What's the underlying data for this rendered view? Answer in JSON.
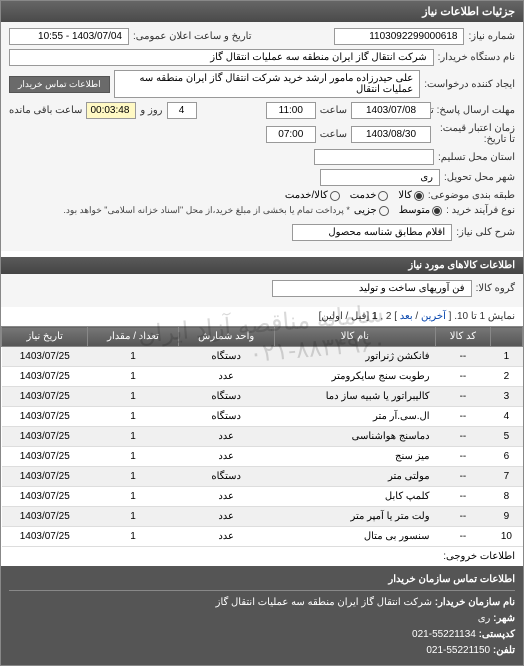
{
  "panel": {
    "title": "جزئیات اطلاعات نیاز"
  },
  "fields": {
    "request_no_label": "شماره نیاز:",
    "request_no": "1103092299000618",
    "announce_label": "تاریخ و ساعت اعلان عمومی:",
    "announce_value": "1403/07/04 - 10:55",
    "buyer_label": "نام دستگاه خریدار:",
    "buyer_value": "شرکت انتقال گاز ایران منطقه سه عملیات انتقال گاز",
    "requester_label": "ایجاد کننده درخواست:",
    "requester_value": "علی حیدرزاده مامور ارشد خرید شرکت انتقال گاز ایران منطقه سه عملیات انتقال",
    "buyer_contact_btn": "اطلاعات تماس خریدار",
    "deadline_send_label": "مهلت ارسال پاسخ: تا",
    "deadline_send_date": "1403/07/08",
    "time_label": "ساعت",
    "deadline_send_time": "11:00",
    "day_label": "روز و",
    "days_remaining": "4",
    "hours_remaining": "00:03:48",
    "remaining_label": "ساعت باقی مانده",
    "validity_label": "زمان اعتبار\nقیمت: تا تاریخ:",
    "validity_date": "1403/08/30",
    "validity_time": "07:00",
    "tender_city_label": "استان محل تسلیم:",
    "delivery_city_label": "شهر محل تحویل:",
    "delivery_city_value": "ری",
    "category_label": "طبقه بندی موضوعی:",
    "cat_goods": "کالا",
    "cat_service": "خدمت",
    "cat_combo": "کالا/خدمت",
    "purchase_type_label": "نوع فرآیند خرید :",
    "pt_small": "متوسط",
    "pt_partial": "جزیی",
    "purchase_note": "* پرداخت تمام یا بخشی از مبلغ خرید،از محل \"اسناد خزانه اسلامی\" خواهد بود.",
    "desc_label": "شرح کلی نیاز:",
    "desc_value": "اقلام مطابق شناسه محصول"
  },
  "goods": {
    "header": "اطلاعات کالاهای مورد نیاز",
    "group_label": "گروه کالا:",
    "group_value": "فن آوریهای ساخت و تولید"
  },
  "pagination": {
    "text_prefix": "نمایش 1 تا 10. [",
    "last": "آخرین",
    "sep": " / ",
    "next": "بعد",
    "text_mid": "] 2 ,",
    "current": "1",
    "text_suffix": " [قبل / اولین]"
  },
  "table": {
    "columns": [
      "",
      "کد کالا",
      "نام کالا",
      "واحد شمارش",
      "تعداد / مقدار",
      "تاریخ نیاز"
    ],
    "rows": [
      [
        "1",
        "--",
        "فانکشن ژنراتور",
        "دستگاه",
        "1",
        "1403/07/25"
      ],
      [
        "2",
        "--",
        "رطوبت سنج سایکرومتر",
        "عدد",
        "1",
        "1403/07/25"
      ],
      [
        "3",
        "--",
        "کالیبراتور یا شبیه ساز دما",
        "دستگاه",
        "1",
        "1403/07/25"
      ],
      [
        "4",
        "--",
        "ال.سی.آر متر",
        "دستگاه",
        "1",
        "1403/07/25"
      ],
      [
        "5",
        "--",
        "دماسنج هواشناسی",
        "عدد",
        "1",
        "1403/07/25"
      ],
      [
        "6",
        "--",
        "میز سنج",
        "عدد",
        "1",
        "1403/07/25"
      ],
      [
        "7",
        "--",
        "مولتی متر",
        "دستگاه",
        "1",
        "1403/07/25"
      ],
      [
        "8",
        "--",
        "کلمپ کابل",
        "عدد",
        "1",
        "1403/07/25"
      ],
      [
        "9",
        "--",
        "ولت متر یا آمپر متر",
        "عدد",
        "1",
        "1403/07/25"
      ],
      [
        "10",
        "--",
        "سنسور بی متال",
        "عدد",
        "1",
        "1403/07/25"
      ]
    ]
  },
  "export": {
    "label": "اطلاعات خروجی:"
  },
  "watermark": {
    "line1": "سامانه مناقصه آزاد ایران",
    "line2": "۰۲۱-۸۸۳۴۹۶۰"
  },
  "footer": {
    "title": "اطلاعات تماس سازمان خریدار",
    "org_label": "نام سازمان خریدار:",
    "org_value": "شرکت انتقال گاز ایران منطقه سه عملیات انتقال گاز",
    "city_label": "شهر:",
    "city_value": "ری",
    "post_label": "کدپستی:",
    "post_value": "55221134-021",
    "phone_label": "تلفن:",
    "phone_value": "55221150-021"
  }
}
